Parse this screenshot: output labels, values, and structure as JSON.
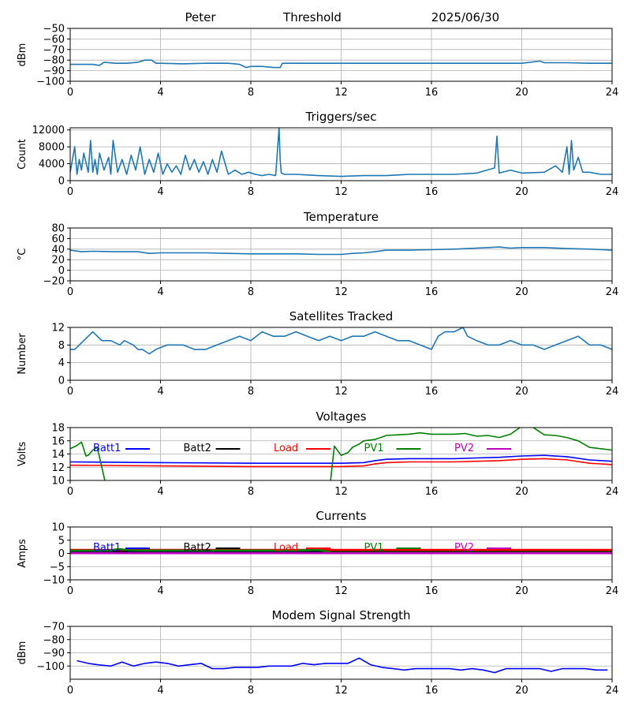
{
  "header": {
    "site": "Peter",
    "mode": "Threshold",
    "date": "2025/06/30"
  },
  "colors": {
    "trace": "#1f77b4",
    "batt1": "#0000ff",
    "batt2": "#000000",
    "load": "#ff0000",
    "pv1": "#008000",
    "pv2": "#bf00bf",
    "grid": "#b0b0b0"
  },
  "chart_data": [
    {
      "type": "line",
      "title": "",
      "ylabel": "dBm",
      "xlim": [
        0,
        24
      ],
      "ylim": [
        -100,
        -50
      ],
      "xticks": [
        0,
        4,
        8,
        12,
        16,
        20,
        24
      ],
      "yticks": [
        -100,
        -90,
        -80,
        -70,
        -60,
        -50
      ],
      "grid": true,
      "series": [
        {
          "color_key": "trace",
          "x": [
            0,
            0.5,
            1,
            1.3,
            1.5,
            2,
            2.5,
            3,
            3.3,
            3.6,
            3.8,
            4,
            5,
            6,
            7,
            7.5,
            7.8,
            8,
            8.5,
            9,
            9.3,
            9.4,
            10,
            12,
            14,
            16,
            18,
            20,
            20.8,
            21,
            22,
            23,
            24
          ],
          "y": [
            -84,
            -84,
            -84,
            -85,
            -82,
            -83,
            -83,
            -82,
            -80,
            -80,
            -83,
            -83,
            -83.5,
            -83,
            -83,
            -84,
            -87,
            -86,
            -86,
            -87,
            -87,
            -83,
            -83,
            -83,
            -83,
            -83,
            -83,
            -83,
            -81,
            -82.5,
            -82.5,
            -83,
            -83
          ]
        }
      ]
    },
    {
      "type": "line",
      "title": "Triggers/sec",
      "ylabel": "Count",
      "xlim": [
        0,
        24
      ],
      "ylim": [
        0,
        12500
      ],
      "xticks": [
        0,
        4,
        8,
        12,
        16,
        20,
        24
      ],
      "yticks": [
        0,
        4000,
        8000,
        12000
      ],
      "grid": true,
      "series": [
        {
          "color_key": "trace",
          "x": [
            0,
            0.2,
            0.3,
            0.4,
            0.5,
            0.6,
            0.8,
            0.9,
            1,
            1.1,
            1.2,
            1.3,
            1.5,
            1.7,
            1.8,
            1.9,
            2.1,
            2.3,
            2.5,
            2.7,
            2.9,
            3.1,
            3.3,
            3.5,
            3.7,
            3.9,
            4.1,
            4.3,
            4.5,
            4.7,
            4.9,
            5.1,
            5.3,
            5.5,
            5.7,
            5.9,
            6.1,
            6.3,
            6.5,
            6.7,
            7,
            7.3,
            7.6,
            7.9,
            8.2,
            8.5,
            8.8,
            9.1,
            9.25,
            9.3,
            9.35,
            9.5,
            10,
            11,
            12,
            13,
            14,
            15,
            16,
            17,
            18,
            18.8,
            18.9,
            19,
            19.5,
            20,
            21,
            21.5,
            21.8,
            22,
            22.1,
            22.2,
            22.3,
            22.5,
            22.7,
            23,
            23.5,
            24
          ],
          "y": [
            2000,
            8000,
            1500,
            5000,
            2500,
            6500,
            2000,
            9500,
            2000,
            5000,
            1500,
            6500,
            2500,
            5500,
            1500,
            9500,
            2000,
            5000,
            1500,
            6000,
            2500,
            8000,
            1500,
            5000,
            2000,
            6500,
            1500,
            4000,
            2000,
            3500,
            1500,
            6000,
            2500,
            5000,
            2000,
            4500,
            1500,
            5000,
            2000,
            7000,
            1500,
            2500,
            1500,
            2000,
            1500,
            1200,
            1500,
            1200,
            12500,
            5000,
            1800,
            1500,
            1500,
            1200,
            1000,
            1200,
            1200,
            1500,
            1500,
            1500,
            1800,
            3000,
            10500,
            1800,
            2500,
            1800,
            2000,
            3500,
            2000,
            8000,
            1500,
            9500,
            2500,
            5500,
            2000,
            2000,
            1500,
            1500
          ]
        }
      ]
    },
    {
      "type": "line",
      "title": "Temperature",
      "ylabel": "°C",
      "xlim": [
        0,
        24
      ],
      "ylim": [
        -20,
        80
      ],
      "xticks": [
        0,
        4,
        8,
        12,
        16,
        20,
        24
      ],
      "yticks": [
        -20,
        0,
        20,
        40,
        60,
        80
      ],
      "grid": true,
      "series": [
        {
          "color_key": "trace",
          "x": [
            0,
            0.5,
            1,
            2,
            3,
            3.5,
            4,
            5,
            6,
            7,
            8,
            9,
            10,
            11,
            12,
            12.5,
            13,
            13.5,
            14,
            15,
            16,
            17,
            18,
            18.5,
            19,
            19.5,
            20,
            21,
            22,
            23,
            24
          ],
          "y": [
            38,
            35,
            36,
            35,
            35,
            32,
            33,
            33,
            33,
            32,
            31,
            31,
            31,
            30,
            30,
            32,
            33,
            35,
            38,
            38,
            39,
            40,
            42,
            43,
            44,
            42,
            43,
            43,
            41,
            40,
            38
          ]
        }
      ]
    },
    {
      "type": "line",
      "title": "Satellites Tracked",
      "ylabel": "Number",
      "xlim": [
        0,
        24
      ],
      "ylim": [
        0,
        12
      ],
      "xticks": [
        0,
        4,
        8,
        12,
        16,
        20,
        24
      ],
      "yticks": [
        0,
        4,
        8,
        12
      ],
      "grid": true,
      "series": [
        {
          "color_key": "trace",
          "x": [
            0,
            0.2,
            0.4,
            0.8,
            1,
            1.4,
            1.8,
            2.2,
            2.4,
            2.8,
            3,
            3.2,
            3.5,
            3.8,
            4.3,
            5,
            5.5,
            6,
            6.5,
            7,
            7.5,
            8,
            8.5,
            9,
            9.5,
            10,
            10.5,
            11,
            11.5,
            12,
            12.5,
            13,
            13.5,
            14,
            14.5,
            15,
            15.5,
            16,
            16.3,
            16.6,
            17,
            17.4,
            17.6,
            18,
            18.5,
            19,
            19.5,
            20,
            20.5,
            21,
            21.5,
            22,
            22.5,
            23,
            23.5,
            24
          ],
          "y": [
            7,
            7,
            8,
            10,
            11,
            9,
            9,
            8,
            9,
            8,
            7,
            7,
            6,
            7,
            8,
            8,
            7,
            7,
            8,
            9,
            10,
            9,
            11,
            10,
            10,
            11,
            10,
            9,
            10,
            9,
            10,
            10,
            11,
            10,
            9,
            9,
            8,
            7,
            10,
            11,
            11,
            12,
            10,
            9,
            8,
            8,
            9,
            8,
            8,
            7,
            8,
            9,
            10,
            8,
            8,
            7
          ]
        }
      ]
    },
    {
      "type": "line",
      "title": "Voltages",
      "ylabel": "Volts",
      "xlim": [
        0,
        24
      ],
      "ylim": [
        10,
        18
      ],
      "xticks": [
        0,
        4,
        8,
        12,
        16,
        20,
        24
      ],
      "yticks": [
        10,
        12,
        14,
        16,
        18
      ],
      "grid": true,
      "legend": "top-left row",
      "series": [
        {
          "name": "Batt1",
          "color_key": "batt1",
          "x": [
            0,
            4,
            8,
            12,
            13,
            13.5,
            14,
            15,
            16,
            17,
            18,
            19,
            20,
            21,
            22,
            23,
            24
          ],
          "y": [
            12.8,
            12.7,
            12.6,
            12.6,
            12.7,
            13,
            13.2,
            13.3,
            13.3,
            13.3,
            13.4,
            13.5,
            13.7,
            13.8,
            13.6,
            13.1,
            12.9
          ]
        },
        {
          "name": "Batt2",
          "color_key": "batt2",
          "x": [],
          "y": []
        },
        {
          "name": "Load",
          "color_key": "load",
          "x": [
            0,
            4,
            8,
            12,
            13,
            13.5,
            14,
            15,
            16,
            17,
            18,
            19,
            20,
            21,
            22,
            23,
            24
          ],
          "y": [
            12.3,
            12.2,
            12.1,
            12.1,
            12.2,
            12.5,
            12.7,
            12.8,
            12.8,
            12.8,
            12.9,
            13,
            13.2,
            13.3,
            13.1,
            12.6,
            12.4
          ]
        },
        {
          "name": "PV1",
          "color_key": "pv1",
          "x": [
            0,
            0.3,
            0.5,
            0.7,
            0.8,
            1,
            1.2,
            1.4,
            1.6,
            1.8,
            2,
            11.2,
            11.5,
            11.7,
            12,
            12.3,
            12.5,
            12.8,
            13,
            13.5,
            14,
            14.5,
            15,
            15.5,
            16,
            16.5,
            17,
            17.5,
            18,
            18.5,
            19,
            19.5,
            20,
            20.3,
            20.6,
            21,
            21.5,
            22,
            22.5,
            23,
            23.5,
            24
          ],
          "y": [
            14.8,
            15.3,
            15.8,
            13.7,
            13.8,
            14.6,
            15.0,
            12.0,
            9.0,
            9.0,
            9.0,
            9.0,
            9.0,
            15.2,
            13.8,
            14.2,
            15.0,
            15.5,
            16.0,
            16.2,
            16.8,
            16.9,
            17.0,
            17.2,
            17.0,
            17.0,
            17.0,
            17.1,
            16.7,
            16.8,
            16.5,
            17.0,
            18.2,
            18.5,
            17.8,
            16.9,
            16.8,
            16.5,
            16.0,
            15.0,
            14.8,
            14.6
          ]
        },
        {
          "name": "PV2",
          "color_key": "pv2",
          "x": [],
          "y": []
        }
      ]
    },
    {
      "type": "line",
      "title": "Currents",
      "ylabel": "Amps",
      "xlim": [
        0,
        24
      ],
      "ylim": [
        -10,
        10
      ],
      "xticks": [
        0,
        4,
        8,
        12,
        16,
        20,
        24
      ],
      "yticks": [
        -10,
        -5,
        0,
        5,
        10
      ],
      "grid": true,
      "legend": "top-left row",
      "series": [
        {
          "name": "Batt1",
          "color_key": "batt1",
          "x": [
            0,
            24
          ],
          "y": [
            0.6,
            0.6
          ]
        },
        {
          "name": "Batt2",
          "color_key": "batt2",
          "x": [
            0,
            24
          ],
          "y": [
            0.9,
            0.9
          ]
        },
        {
          "name": "Load",
          "color_key": "load",
          "x": [
            0,
            24
          ],
          "y": [
            1.3,
            1.3
          ]
        },
        {
          "name": "PV1",
          "color_key": "pv1",
          "x": [
            0,
            1.8,
            2.0,
            2.2,
            2.6,
            3.0,
            10,
            11.0,
            11.3,
            11.6,
            24
          ],
          "y": [
            1.0,
            1.1,
            1.5,
            1.6,
            1.2,
            1.1,
            1.1,
            1.3,
            0.8,
            0.3,
            0.3
          ]
        },
        {
          "name": "PV2",
          "color_key": "pv2",
          "x": [
            0,
            24
          ],
          "y": [
            0.1,
            0.1
          ]
        }
      ]
    },
    {
      "type": "line",
      "title": "Modem Signal Strength",
      "ylabel": "dBm",
      "xlim": [
        0,
        24
      ],
      "ylim": [
        -110,
        -70
      ],
      "xticks": [
        0,
        4,
        8,
        12,
        16,
        20,
        24
      ],
      "yticks": [
        -100,
        -90,
        -80,
        -70
      ],
      "grid": true,
      "series": [
        {
          "color_key": "batt1",
          "x": [
            0.3,
            0.8,
            1.2,
            1.8,
            2.3,
            2.8,
            3.3,
            3.8,
            4.3,
            4.8,
            5.3,
            5.8,
            6.3,
            6.8,
            7.3,
            7.8,
            8.3,
            8.8,
            9.3,
            9.8,
            10.3,
            10.8,
            11.3,
            11.8,
            12.3,
            12.8,
            13.3,
            13.8,
            14.3,
            14.8,
            15.3,
            15.8,
            16.3,
            16.8,
            17.3,
            17.8,
            18.3,
            18.8,
            19.3,
            19.8,
            20.3,
            20.8,
            21.3,
            21.8,
            22.3,
            22.8,
            23.3,
            23.8
          ],
          "y": [
            -96,
            -98,
            -99,
            -100,
            -97,
            -100,
            -98,
            -97,
            -98,
            -100,
            -99,
            -98,
            -102,
            -102,
            -101,
            -101,
            -101,
            -100,
            -100,
            -100,
            -98,
            -99,
            -98,
            -98,
            -98,
            -94,
            -99,
            -101,
            -102,
            -103,
            -102,
            -102,
            -102,
            -102,
            -103,
            -102,
            -103,
            -105,
            -102,
            -102,
            -102,
            -102,
            -104,
            -102,
            -102,
            -102,
            -103,
            -103
          ]
        }
      ]
    }
  ]
}
